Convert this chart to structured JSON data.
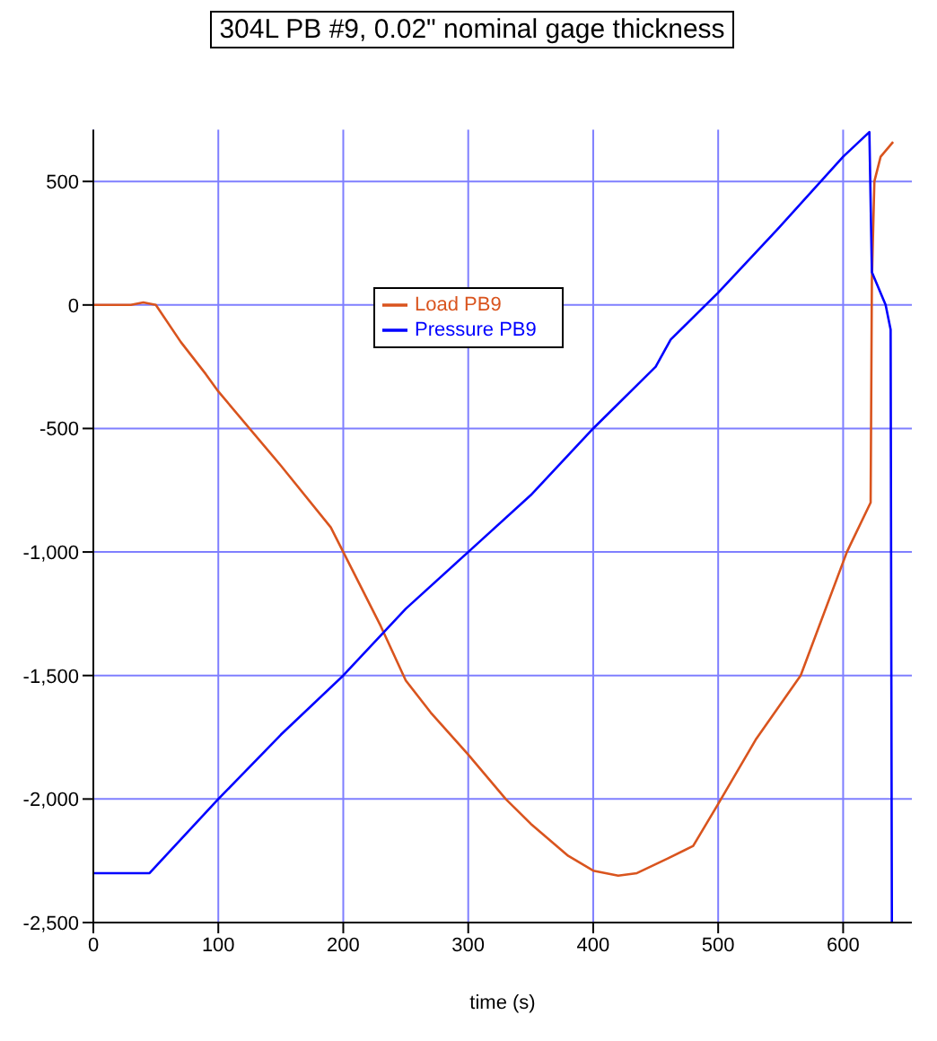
{
  "chart_data": {
    "type": "line",
    "title": "304L PB #9, 0.02\" nominal gage thickness",
    "xlabel": "time (s)",
    "xlim": [
      0,
      655
    ],
    "xticks": [
      0,
      100,
      200,
      300,
      400,
      500,
      600
    ],
    "ylim": [
      -2500,
      710
    ],
    "yticks": [
      {
        "value": -2500,
        "label": "-2,500"
      },
      {
        "value": -2000,
        "label": "-2,000"
      },
      {
        "value": -1500,
        "label": "-1,500"
      },
      {
        "value": -1000,
        "label": "-1,000"
      },
      -500,
      0,
      500
    ],
    "grid": true,
    "legend": "top",
    "line_style": "solid",
    "marker": "none",
    "series": [
      {
        "name": "Load PB9",
        "color": "#d9541e",
        "x": [
          0,
          30,
          40,
          50,
          70,
          90,
          100,
          150,
          190,
          200,
          230,
          250,
          270,
          300,
          330,
          350,
          380,
          400,
          420,
          435,
          460,
          480,
          500,
          530,
          566,
          603,
          622,
          623,
          625,
          630,
          640
        ],
        "values": [
          0,
          0,
          10,
          0,
          -150,
          -280,
          -350,
          -650,
          -900,
          -1000,
          -1300,
          -1520,
          -1650,
          -1820,
          -2000,
          -2100,
          -2230,
          -2290,
          -2310,
          -2300,
          -2240,
          -2190,
          -2020,
          -1760,
          -1500,
          -1000,
          -800,
          100,
          500,
          600,
          660
        ]
      },
      {
        "name": "Pressure PB9",
        "color": "#0000ff",
        "x": [
          0,
          45,
          100,
          150,
          200,
          250,
          300,
          350,
          400,
          450,
          462,
          500,
          550,
          600,
          621,
          623,
          634,
          638,
          639
        ],
        "values": [
          -2300,
          -2300,
          -2000,
          -1740,
          -1500,
          -1230,
          -1000,
          -770,
          -500,
          -250,
          -140,
          50,
          320,
          600,
          700,
          133,
          0,
          -100,
          -2500
        ]
      }
    ]
  }
}
